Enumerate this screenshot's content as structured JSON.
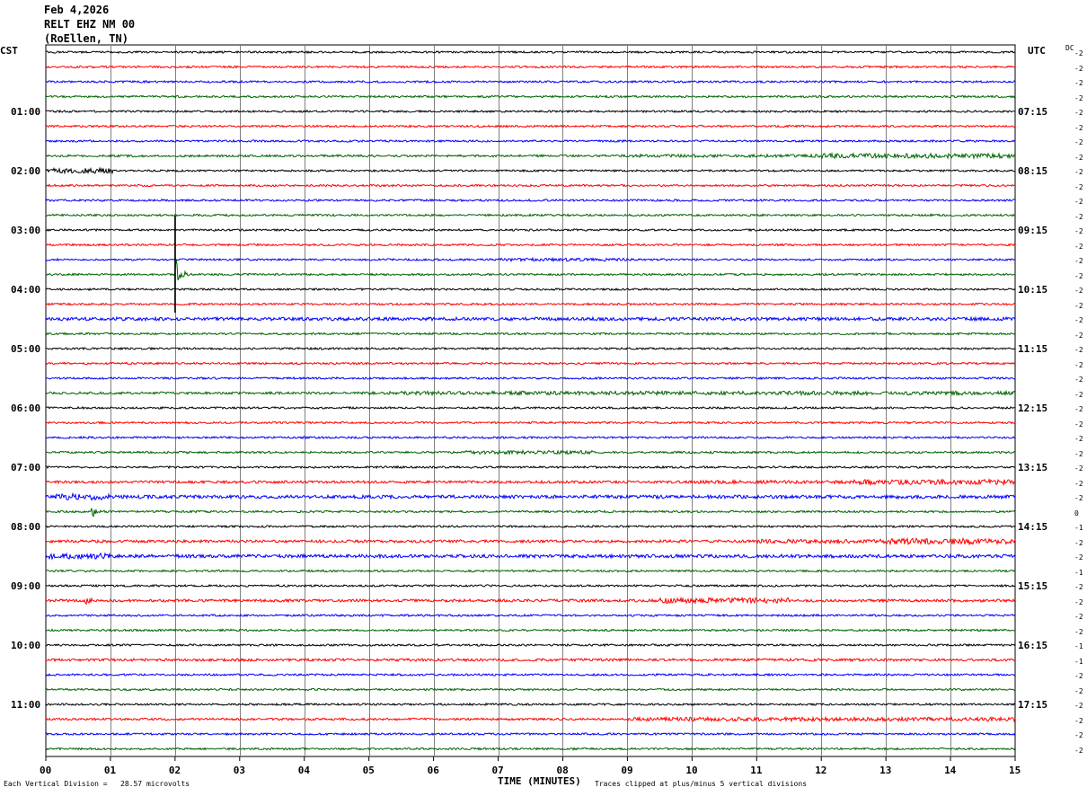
{
  "header": {
    "date": "Feb 4,2026",
    "station": "RELT EHZ NM 00",
    "location": "(RoEllen, TN)"
  },
  "left_tz": "CST",
  "right_tz": "UTC",
  "dc_label": "DC",
  "footer": {
    "scale_note": "Each Vertical Division =   28.57 microvolts",
    "x_axis_title": "TIME (MINUTES)",
    "clip_note": "Traces clipped at plus/minus 5 vertical divisions"
  },
  "colors": {
    "trace_cycle": [
      "#000000",
      "#ff0000",
      "#0000ff",
      "#006400"
    ],
    "grid": "#808080"
  },
  "chart_data": {
    "type": "line",
    "title": "",
    "xlabel": "TIME (MINUTES)",
    "xlim": [
      0,
      15
    ],
    "x_ticks": [
      "00",
      "01",
      "02",
      "03",
      "04",
      "05",
      "06",
      "07",
      "08",
      "09",
      "10",
      "11",
      "12",
      "13",
      "14",
      "15"
    ],
    "left_hour_labels": [
      "01:00",
      "02:00",
      "03:00",
      "04:00",
      "05:00",
      "06:00",
      "07:00",
      "08:00",
      "09:00",
      "10:00",
      "11:00"
    ],
    "right_hour_labels": [
      "07:15",
      "08:15",
      "09:15",
      "10:15",
      "11:15",
      "12:15",
      "13:15",
      "14:15",
      "15:15",
      "16:15",
      "17:15"
    ],
    "dc_offsets": [
      "-2",
      "-2",
      "-2",
      "-2",
      "-2",
      "-2",
      "-2",
      "-2",
      "-2",
      "-2",
      "-2",
      "-2",
      "-2",
      "-2",
      "-2",
      "-2",
      "-2",
      "-2",
      "-2",
      "-2",
      "-2",
      "-2",
      "-2",
      "-2",
      "-2",
      "-2",
      "-2",
      "-2",
      "-2",
      "-2",
      "-2",
      "0",
      "-1",
      "-2",
      "-2",
      "-1",
      "-2",
      "-2",
      "-2",
      "-2",
      "-1",
      "-1",
      "-2",
      "-2",
      "-2",
      "-2",
      "-2",
      "-2"
    ],
    "trace_count": 48,
    "minutes_per_trace": 15,
    "events": [
      {
        "trace": 15,
        "minute": 2.0,
        "amplitude": 5,
        "note": "large spike"
      },
      {
        "trace": 31,
        "minute": 0.7,
        "amplitude": 1.6
      },
      {
        "trace": 37,
        "minute": 0.6,
        "amplitude": 1.4
      }
    ]
  }
}
